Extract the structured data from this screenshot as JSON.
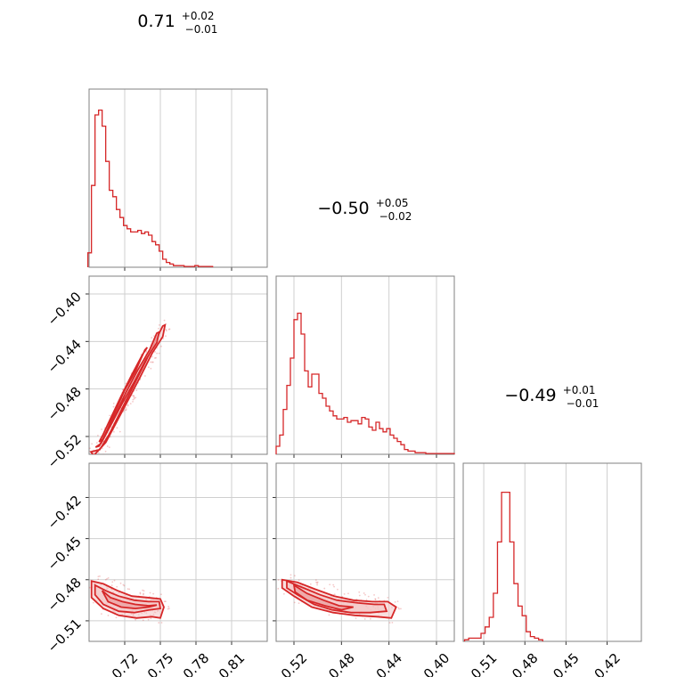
{
  "chart_data": {
    "type": "corner",
    "accent_color": "#d62728",
    "fill_color": "#f4c4c4",
    "grid": true,
    "params": [
      {
        "median": "0.71",
        "plus": "+0.02",
        "minus": "−0.01"
      },
      {
        "median": "−0.50",
        "plus": "+0.05",
        "minus": "−0.02"
      },
      {
        "median": "−0.49",
        "plus": "+0.01",
        "minus": "−0.01"
      }
    ],
    "axes": {
      "p1": {
        "range": [
          0.69,
          0.84
        ],
        "ticks": [
          0.72,
          0.75,
          0.78,
          0.81
        ],
        "tick_labels": [
          "0.72",
          "0.75",
          "0.78",
          "0.81"
        ]
      },
      "p2": {
        "range": [
          -0.535,
          -0.385
        ],
        "ticks": [
          -0.52,
          -0.48,
          -0.44,
          -0.4
        ],
        "tick_labels": [
          "−0.52",
          "−0.48",
          "−0.44",
          "−0.40"
        ]
      },
      "p3": {
        "range": [
          -0.525,
          -0.395
        ],
        "ticks": [
          -0.51,
          -0.48,
          -0.45,
          -0.42
        ],
        "tick_labels": [
          "−0.51",
          "−0.48",
          "−0.45",
          "−0.42"
        ]
      }
    },
    "hist_p1": {
      "x": [
        0.6905,
        0.6935,
        0.6965,
        0.6995,
        0.7025,
        0.7055,
        0.7085,
        0.7115,
        0.7145,
        0.7175,
        0.7205,
        0.7235,
        0.7265,
        0.7295,
        0.7325,
        0.7355,
        0.7385,
        0.7415,
        0.7445,
        0.7475,
        0.7505,
        0.7535,
        0.7565,
        0.7595,
        0.7625,
        0.7655,
        0.7685,
        0.7715,
        0.7745,
        0.7775,
        0.7805,
        0.7835,
        0.7865,
        0.7895,
        0.7925
      ],
      "y": [
        0.09,
        0.51,
        0.95,
        0.98,
        0.88,
        0.66,
        0.48,
        0.44,
        0.36,
        0.31,
        0.26,
        0.24,
        0.22,
        0.22,
        0.23,
        0.21,
        0.22,
        0.2,
        0.16,
        0.14,
        0.1,
        0.05,
        0.03,
        0.02,
        0.01,
        0.01,
        0.01,
        0.005,
        0.005,
        0.005,
        0.01,
        0.005,
        0.005,
        0.005,
        0.005
      ]
    },
    "hist_p2": {
      "x": [
        -0.5335,
        -0.5305,
        -0.5275,
        -0.5245,
        -0.5215,
        -0.5185,
        -0.5155,
        -0.5125,
        -0.5095,
        -0.5065,
        -0.5035,
        -0.5005,
        -0.4975,
        -0.4945,
        -0.4915,
        -0.4885,
        -0.4855,
        -0.4825,
        -0.4795,
        -0.4765,
        -0.4735,
        -0.4705,
        -0.4675,
        -0.4645,
        -0.4615,
        -0.4585,
        -0.4555,
        -0.4525,
        -0.4495,
        -0.4465,
        -0.4435,
        -0.4405,
        -0.4375,
        -0.4345,
        -0.4315,
        -0.4285,
        -0.4255,
        -0.4225,
        -0.4195,
        -0.4165,
        -0.4135,
        -0.4105,
        -0.4075,
        -0.4045,
        -0.4015,
        -0.3985,
        -0.3955,
        -0.3925,
        -0.3895,
        -0.3865
      ],
      "y": [
        0.05,
        0.12,
        0.28,
        0.43,
        0.6,
        0.84,
        0.88,
        0.75,
        0.52,
        0.42,
        0.5,
        0.5,
        0.38,
        0.35,
        0.3,
        0.27,
        0.24,
        0.22,
        0.22,
        0.23,
        0.2,
        0.21,
        0.21,
        0.19,
        0.23,
        0.22,
        0.17,
        0.15,
        0.2,
        0.16,
        0.14,
        0.16,
        0.12,
        0.1,
        0.08,
        0.06,
        0.03,
        0.02,
        0.02,
        0.01,
        0.01,
        0.01,
        0.005,
        0.005,
        0.005,
        0.005,
        0.005,
        0.005,
        0.005,
        0.005
      ]
    },
    "hist_p3": {
      "x": [
        -0.5225,
        -0.5195,
        -0.5165,
        -0.5135,
        -0.5105,
        -0.5075,
        -0.5045,
        -0.5015,
        -0.4985,
        -0.4955,
        -0.4925,
        -0.4895,
        -0.4865,
        -0.4835,
        -0.4805,
        -0.4775,
        -0.4745,
        -0.4715,
        -0.4685
      ],
      "y": [
        0.01,
        0.02,
        0.02,
        0.02,
        0.05,
        0.09,
        0.15,
        0.3,
        0.62,
        0.93,
        0.93,
        0.62,
        0.36,
        0.22,
        0.16,
        0.06,
        0.03,
        0.02,
        0.01
      ]
    },
    "contours": {
      "p1_p2": {
        "inner": [
          [
            0.6985,
            -0.5245
          ],
          [
            0.7015,
            -0.5225
          ],
          [
            0.7055,
            -0.514
          ],
          [
            0.712,
            -0.499
          ],
          [
            0.72,
            -0.481
          ],
          [
            0.729,
            -0.465
          ],
          [
            0.737,
            -0.447
          ],
          [
            0.739,
            -0.445
          ],
          [
            0.735,
            -0.451
          ],
          [
            0.726,
            -0.468
          ],
          [
            0.717,
            -0.486
          ],
          [
            0.708,
            -0.505
          ],
          [
            0.7015,
            -0.519
          ]
        ],
        "mid": [
          [
            0.6955,
            -0.529
          ],
          [
            0.6985,
            -0.528
          ],
          [
            0.704,
            -0.518
          ],
          [
            0.712,
            -0.502
          ],
          [
            0.721,
            -0.483
          ],
          [
            0.731,
            -0.464
          ],
          [
            0.741,
            -0.447
          ],
          [
            0.747,
            -0.433
          ],
          [
            0.749,
            -0.432
          ],
          [
            0.747,
            -0.441
          ],
          [
            0.738,
            -0.455
          ],
          [
            0.728,
            -0.474
          ],
          [
            0.718,
            -0.492
          ],
          [
            0.708,
            -0.511
          ],
          [
            0.7,
            -0.526
          ]
        ],
        "outer": [
          [
            0.6915,
            -0.533
          ],
          [
            0.699,
            -0.531
          ],
          [
            0.707,
            -0.518
          ],
          [
            0.717,
            -0.498
          ],
          [
            0.728,
            -0.476
          ],
          [
            0.738,
            -0.456
          ],
          [
            0.746,
            -0.439
          ],
          [
            0.752,
            -0.427
          ],
          [
            0.754,
            -0.426
          ],
          [
            0.752,
            -0.436
          ],
          [
            0.743,
            -0.45
          ],
          [
            0.733,
            -0.47
          ],
          [
            0.722,
            -0.491
          ],
          [
            0.712,
            -0.51
          ],
          [
            0.704,
            -0.525
          ],
          [
            0.694,
            -0.536
          ]
        ]
      },
      "p1_p3": {
        "inner": [
          [
            0.701,
            -0.488
          ],
          [
            0.708,
            -0.493
          ],
          [
            0.718,
            -0.496
          ],
          [
            0.729,
            -0.498
          ],
          [
            0.74,
            -0.499
          ],
          [
            0.747,
            -0.4985
          ],
          [
            0.74,
            -0.5
          ],
          [
            0.729,
            -0.501
          ],
          [
            0.717,
            -0.5
          ],
          [
            0.706,
            -0.496
          ]
        ],
        "mid": [
          [
            0.695,
            -0.484
          ],
          [
            0.704,
            -0.488
          ],
          [
            0.715,
            -0.492
          ],
          [
            0.728,
            -0.495
          ],
          [
            0.74,
            -0.496
          ],
          [
            0.749,
            -0.496
          ],
          [
            0.75,
            -0.501
          ],
          [
            0.741,
            -0.502
          ],
          [
            0.728,
            -0.504
          ],
          [
            0.715,
            -0.503
          ],
          [
            0.702,
            -0.498
          ],
          [
            0.695,
            -0.491
          ]
        ],
        "outer": [
          [
            0.692,
            -0.481
          ],
          [
            0.702,
            -0.483
          ],
          [
            0.714,
            -0.488
          ],
          [
            0.726,
            -0.492
          ],
          [
            0.739,
            -0.493
          ],
          [
            0.75,
            -0.494
          ],
          [
            0.753,
            -0.5
          ],
          [
            0.75,
            -0.508
          ],
          [
            0.743,
            -0.507
          ],
          [
            0.73,
            -0.508
          ],
          [
            0.715,
            -0.506
          ],
          [
            0.702,
            -0.501
          ],
          [
            0.692,
            -0.493
          ]
        ]
      },
      "p2_p3": {
        "inner": [
          [
            -0.52,
            -0.484
          ],
          [
            -0.509,
            -0.49
          ],
          [
            -0.495,
            -0.495
          ],
          [
            -0.482,
            -0.499
          ],
          [
            -0.47,
            -0.5
          ],
          [
            -0.48,
            -0.502
          ],
          [
            -0.494,
            -0.499
          ],
          [
            -0.509,
            -0.495
          ],
          [
            -0.519,
            -0.489
          ]
        ],
        "mid": [
          [
            -0.526,
            -0.481
          ],
          [
            -0.512,
            -0.486
          ],
          [
            -0.498,
            -0.491
          ],
          [
            -0.484,
            -0.495
          ],
          [
            -0.466,
            -0.497
          ],
          [
            -0.452,
            -0.498
          ],
          [
            -0.444,
            -0.498
          ],
          [
            -0.442,
            -0.503
          ],
          [
            -0.456,
            -0.504
          ],
          [
            -0.472,
            -0.504
          ],
          [
            -0.488,
            -0.502
          ],
          [
            -0.503,
            -0.498
          ],
          [
            -0.517,
            -0.491
          ],
          [
            -0.526,
            -0.486
          ]
        ],
        "outer": [
          [
            -0.53,
            -0.48
          ],
          [
            -0.517,
            -0.482
          ],
          [
            -0.502,
            -0.487
          ],
          [
            -0.486,
            -0.492
          ],
          [
            -0.47,
            -0.495
          ],
          [
            -0.454,
            -0.496
          ],
          [
            -0.441,
            -0.496
          ],
          [
            -0.434,
            -0.5
          ],
          [
            -0.438,
            -0.508
          ],
          [
            -0.45,
            -0.507
          ],
          [
            -0.469,
            -0.506
          ],
          [
            -0.487,
            -0.504
          ],
          [
            -0.505,
            -0.5
          ],
          [
            -0.52,
            -0.492
          ],
          [
            -0.53,
            -0.486
          ]
        ]
      }
    }
  }
}
